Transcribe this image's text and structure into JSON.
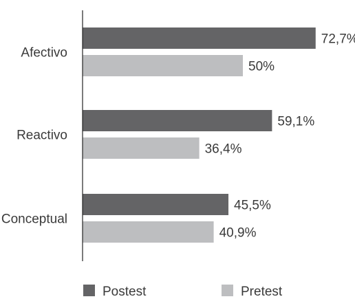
{
  "chart_data": {
    "type": "bar",
    "orientation": "horizontal",
    "categories": [
      "Afectivo",
      "Reactivo",
      "Conceptual"
    ],
    "series": [
      {
        "name": "Postest",
        "values": [
          72.7,
          59.1,
          45.5
        ],
        "labels": [
          "72,7%",
          "59,1%",
          "45,5%"
        ],
        "color": "#646466"
      },
      {
        "name": "Pretest",
        "values": [
          50,
          36.4,
          40.9
        ],
        "labels": [
          "50%",
          "36,4%",
          "40,9%"
        ],
        "color": "#bdbec0"
      }
    ],
    "xlim": [
      0,
      80
    ],
    "axis_color": "#222222",
    "text_color": "#3a3a3a",
    "grid": false,
    "legend_position": "bottom"
  }
}
